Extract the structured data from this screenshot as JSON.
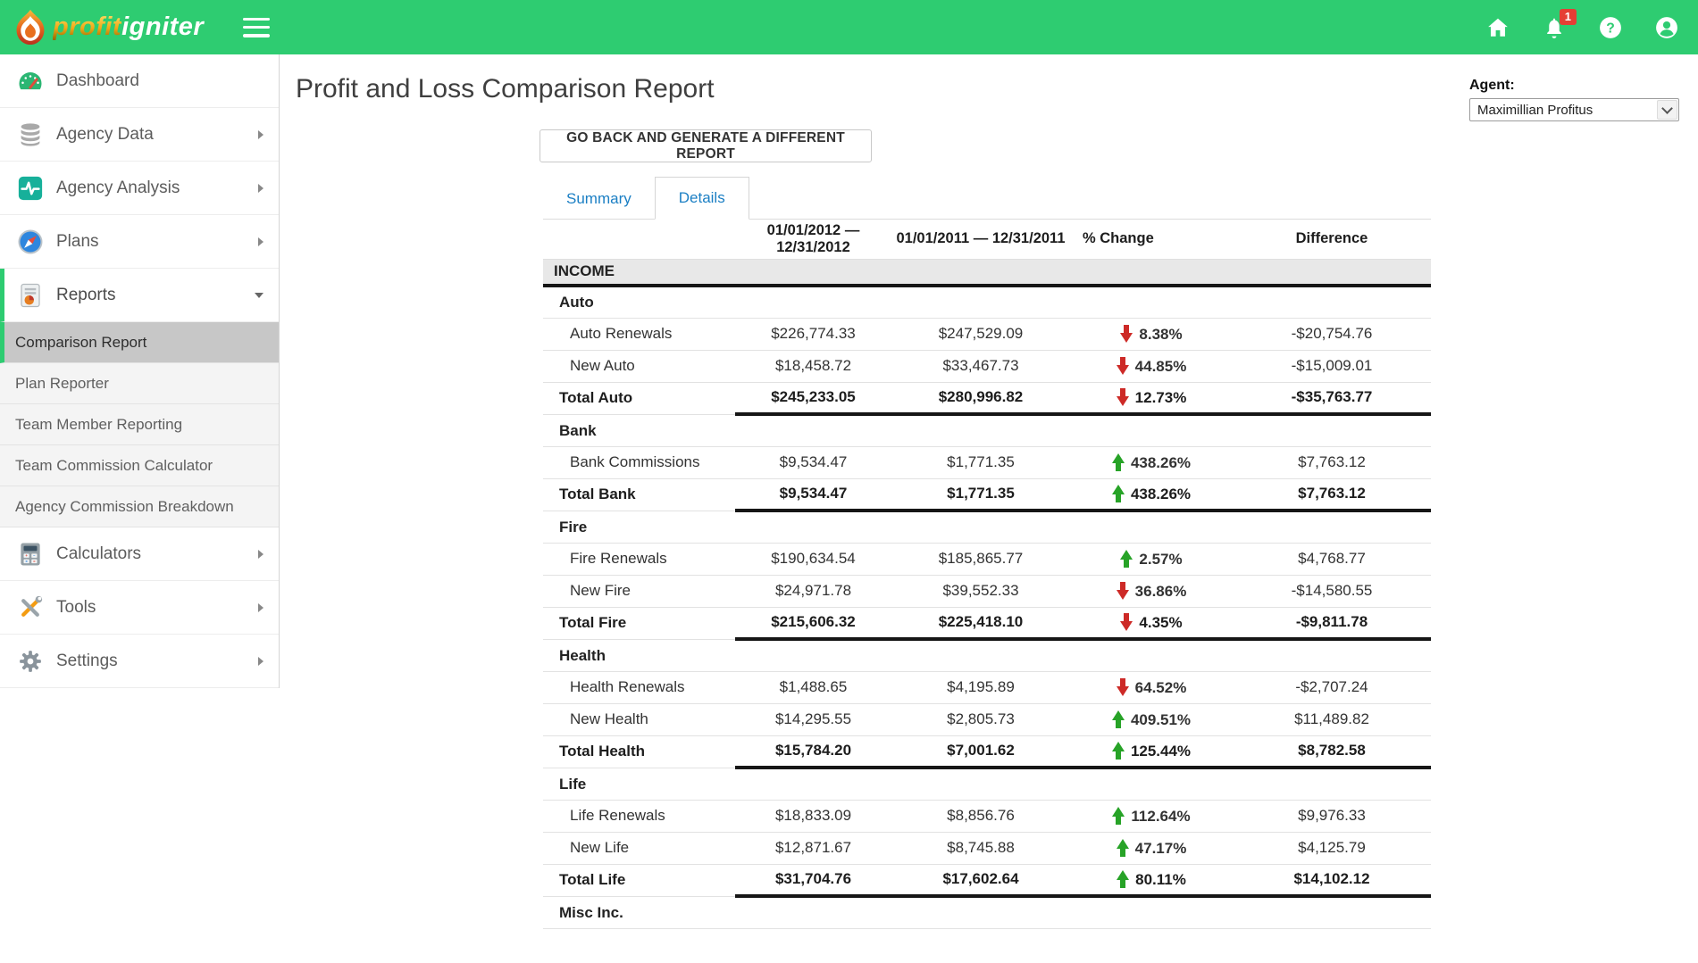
{
  "app": {
    "brand_profit": "profit",
    "brand_igniter": "igniter",
    "colors": {
      "header_green": "#2ecc71",
      "active_left_bar": "#2ecc71",
      "tab_blue": "#1b7fc4",
      "trend_up_green": "#27a327",
      "trend_down_red": "#cd2a27",
      "notification_badge_red": "#e53e34"
    }
  },
  "header": {
    "notification_count": "1",
    "icons": [
      "hamburger-icon",
      "home-icon",
      "bell-icon",
      "help-icon",
      "account-icon"
    ]
  },
  "sidebar": {
    "items": [
      {
        "label": "Dashboard",
        "icon": "gauge-icon",
        "chevron": "none",
        "state": "normal"
      },
      {
        "label": "Agency Data",
        "icon": "database-icon",
        "chevron": "right",
        "state": "normal"
      },
      {
        "label": "Agency Analysis",
        "icon": "pulse-icon",
        "chevron": "right",
        "state": "normal"
      },
      {
        "label": "Plans",
        "icon": "compass-icon",
        "chevron": "right",
        "state": "normal"
      },
      {
        "label": "Reports",
        "icon": "report-icon",
        "chevron": "down",
        "state": "active-open"
      },
      {
        "label": "Calculators",
        "icon": "calculator-icon",
        "chevron": "right",
        "state": "normal"
      },
      {
        "label": "Tools",
        "icon": "tools-icon",
        "chevron": "right",
        "state": "normal"
      },
      {
        "label": "Settings",
        "icon": "gear-icon",
        "chevron": "right",
        "state": "normal"
      }
    ],
    "reports_submenu": [
      {
        "label": "Comparison Report",
        "active": true
      },
      {
        "label": "Plan Reporter",
        "active": false
      },
      {
        "label": "Team Member Reporting",
        "active": false
      },
      {
        "label": "Team Commission Calculator",
        "active": false
      },
      {
        "label": "Agency Commission Breakdown",
        "active": false
      }
    ]
  },
  "main": {
    "title": "Profit and Loss Comparison Report",
    "back_button_label": "GO BACK AND GENERATE A DIFFERENT REPORT",
    "tabs": [
      {
        "label": "Summary",
        "active": false
      },
      {
        "label": "Details",
        "active": true
      }
    ],
    "agent_label": "Agent:",
    "agent_selected": "Maximillian Profitus"
  },
  "report_table": {
    "columns": [
      "",
      "01/01/2012 — 12/31/2012",
      "01/01/2011 — 12/31/2011",
      "% Change",
      "Difference"
    ],
    "group_header": "INCOME",
    "sections": [
      {
        "name": "Auto",
        "rows": [
          {
            "label": "Auto Renewals",
            "type": "item",
            "current": "$226,774.33",
            "previous": "$247,529.09",
            "trend": "down",
            "pct": "8.38%",
            "difference": "-$20,754.76"
          },
          {
            "label": "New Auto",
            "type": "item",
            "current": "$18,458.72",
            "previous": "$33,467.73",
            "trend": "down",
            "pct": "44.85%",
            "difference": "-$15,009.01"
          },
          {
            "label": "Total Auto",
            "type": "total",
            "current": "$245,233.05",
            "previous": "$280,996.82",
            "trend": "down",
            "pct": "12.73%",
            "difference": "-$35,763.77"
          }
        ]
      },
      {
        "name": "Bank",
        "rows": [
          {
            "label": "Bank Commissions",
            "type": "item",
            "current": "$9,534.47",
            "previous": "$1,771.35",
            "trend": "up",
            "pct": "438.26%",
            "difference": "$7,763.12"
          },
          {
            "label": "Total Bank",
            "type": "total",
            "current": "$9,534.47",
            "previous": "$1,771.35",
            "trend": "up",
            "pct": "438.26%",
            "difference": "$7,763.12"
          }
        ]
      },
      {
        "name": "Fire",
        "rows": [
          {
            "label": "Fire Renewals",
            "type": "item",
            "current": "$190,634.54",
            "previous": "$185,865.77",
            "trend": "up",
            "pct": "2.57%",
            "difference": "$4,768.77"
          },
          {
            "label": "New Fire",
            "type": "item",
            "current": "$24,971.78",
            "previous": "$39,552.33",
            "trend": "down",
            "pct": "36.86%",
            "difference": "-$14,580.55"
          },
          {
            "label": "Total Fire",
            "type": "total",
            "current": "$215,606.32",
            "previous": "$225,418.10",
            "trend": "down",
            "pct": "4.35%",
            "difference": "-$9,811.78"
          }
        ]
      },
      {
        "name": "Health",
        "rows": [
          {
            "label": "Health Renewals",
            "type": "item",
            "current": "$1,488.65",
            "previous": "$4,195.89",
            "trend": "down",
            "pct": "64.52%",
            "difference": "-$2,707.24"
          },
          {
            "label": "New Health",
            "type": "item",
            "current": "$14,295.55",
            "previous": "$2,805.73",
            "trend": "up",
            "pct": "409.51%",
            "difference": "$11,489.82"
          },
          {
            "label": "Total Health",
            "type": "total",
            "current": "$15,784.20",
            "previous": "$7,001.62",
            "trend": "up",
            "pct": "125.44%",
            "difference": "$8,782.58"
          }
        ]
      },
      {
        "name": "Life",
        "rows": [
          {
            "label": "Life Renewals",
            "type": "item",
            "current": "$18,833.09",
            "previous": "$8,856.76",
            "trend": "up",
            "pct": "112.64%",
            "difference": "$9,976.33"
          },
          {
            "label": "New Life",
            "type": "item",
            "current": "$12,871.67",
            "previous": "$8,745.88",
            "trend": "up",
            "pct": "47.17%",
            "difference": "$4,125.79"
          },
          {
            "label": "Total Life",
            "type": "total",
            "current": "$31,704.76",
            "previous": "$17,602.64",
            "trend": "up",
            "pct": "80.11%",
            "difference": "$14,102.12"
          }
        ]
      },
      {
        "name": "Misc Inc.",
        "rows": []
      }
    ]
  }
}
